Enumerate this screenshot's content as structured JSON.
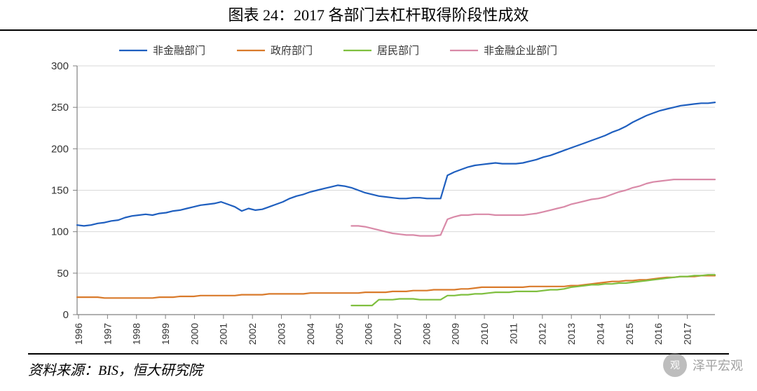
{
  "title": "图表 24：2017 各部门去杠杆取得阶段性成效",
  "source": "资料来源：BIS，恒大研究院",
  "watermark": "泽平宏观",
  "chart": {
    "type": "line",
    "background_color": "#ffffff",
    "grid_color": "#d9d9d9",
    "axis_color": "#808080",
    "ylim": [
      0,
      300
    ],
    "ytick_step": 50,
    "yticks": [
      0,
      50,
      100,
      150,
      200,
      250,
      300
    ],
    "xlabels": [
      "1996",
      "1997",
      "1998",
      "1999",
      "2000",
      "2001",
      "2002",
      "2003",
      "2004",
      "2005",
      "2006",
      "2007",
      "2008",
      "2009",
      "2010",
      "2011",
      "2012",
      "2013",
      "2014",
      "2015",
      "2016",
      "2017"
    ],
    "label_fontsize": 15,
    "line_width": 2.2,
    "legend": {
      "position": "top",
      "items": [
        "非金融部门",
        "政府部门",
        "居民部门",
        "非金融企业部门"
      ]
    },
    "colors": {
      "非金融部门": "#1f5fbf",
      "政府部门": "#d97a2b",
      "居民部门": "#7fbf3f",
      "非金融企业部门": "#d98aa8"
    },
    "series": {
      "非金融部门": [
        108,
        107,
        108,
        110,
        111,
        113,
        114,
        117,
        119,
        120,
        121,
        120,
        122,
        123,
        125,
        126,
        128,
        130,
        132,
        133,
        134,
        136,
        133,
        130,
        125,
        128,
        126,
        127,
        130,
        133,
        136,
        140,
        143,
        145,
        148,
        150,
        152,
        154,
        156,
        155,
        153,
        150,
        147,
        145,
        143,
        142,
        141,
        140,
        140,
        141,
        141,
        140,
        140,
        140,
        168,
        172,
        175,
        178,
        180,
        181,
        182,
        183,
        182,
        182,
        182,
        183,
        185,
        187,
        190,
        192,
        195,
        198,
        201,
        204,
        207,
        210,
        213,
        216,
        220,
        223,
        227,
        232,
        236,
        240,
        243,
        246,
        248,
        250,
        252,
        253,
        254,
        255,
        255,
        256
      ],
      "政府部门": [
        21,
        21,
        21,
        21,
        20,
        20,
        20,
        20,
        20,
        20,
        20,
        20,
        21,
        21,
        21,
        22,
        22,
        22,
        23,
        23,
        23,
        23,
        23,
        23,
        24,
        24,
        24,
        24,
        25,
        25,
        25,
        25,
        25,
        25,
        26,
        26,
        26,
        26,
        26,
        26,
        26,
        26,
        27,
        27,
        27,
        27,
        28,
        28,
        28,
        29,
        29,
        29,
        30,
        30,
        30,
        30,
        31,
        31,
        32,
        33,
        33,
        33,
        33,
        33,
        33,
        33,
        34,
        34,
        34,
        34,
        34,
        34,
        35,
        35,
        36,
        37,
        38,
        39,
        40,
        40,
        41,
        41,
        42,
        42,
        43,
        44,
        45,
        45,
        46,
        46,
        46,
        47,
        47,
        47
      ],
      "居民部门": [
        null,
        null,
        null,
        null,
        null,
        null,
        null,
        null,
        null,
        null,
        null,
        null,
        null,
        null,
        null,
        null,
        null,
        null,
        null,
        null,
        null,
        null,
        null,
        null,
        null,
        null,
        null,
        null,
        null,
        null,
        null,
        null,
        null,
        null,
        null,
        null,
        null,
        null,
        null,
        null,
        11,
        11,
        11,
        11,
        18,
        18,
        18,
        19,
        19,
        19,
        18,
        18,
        18,
        18,
        23,
        23,
        24,
        24,
        25,
        25,
        26,
        27,
        27,
        27,
        28,
        28,
        28,
        28,
        29,
        30,
        30,
        31,
        33,
        34,
        35,
        36,
        36,
        37,
        37,
        38,
        38,
        39,
        40,
        41,
        42,
        43,
        44,
        45,
        46,
        46,
        47,
        47,
        48,
        48
      ],
      "非金融企业部门": [
        null,
        null,
        null,
        null,
        null,
        null,
        null,
        null,
        null,
        null,
        null,
        null,
        null,
        null,
        null,
        null,
        null,
        null,
        null,
        null,
        null,
        null,
        null,
        null,
        null,
        null,
        null,
        null,
        null,
        null,
        null,
        null,
        null,
        null,
        null,
        null,
        null,
        null,
        null,
        null,
        107,
        107,
        106,
        104,
        102,
        100,
        98,
        97,
        96,
        96,
        95,
        95,
        95,
        96,
        115,
        118,
        120,
        120,
        121,
        121,
        121,
        120,
        120,
        120,
        120,
        120,
        121,
        122,
        124,
        126,
        128,
        130,
        133,
        135,
        137,
        139,
        140,
        142,
        145,
        148,
        150,
        153,
        155,
        158,
        160,
        161,
        162,
        163,
        163,
        163,
        163,
        163,
        163,
        163
      ]
    }
  }
}
